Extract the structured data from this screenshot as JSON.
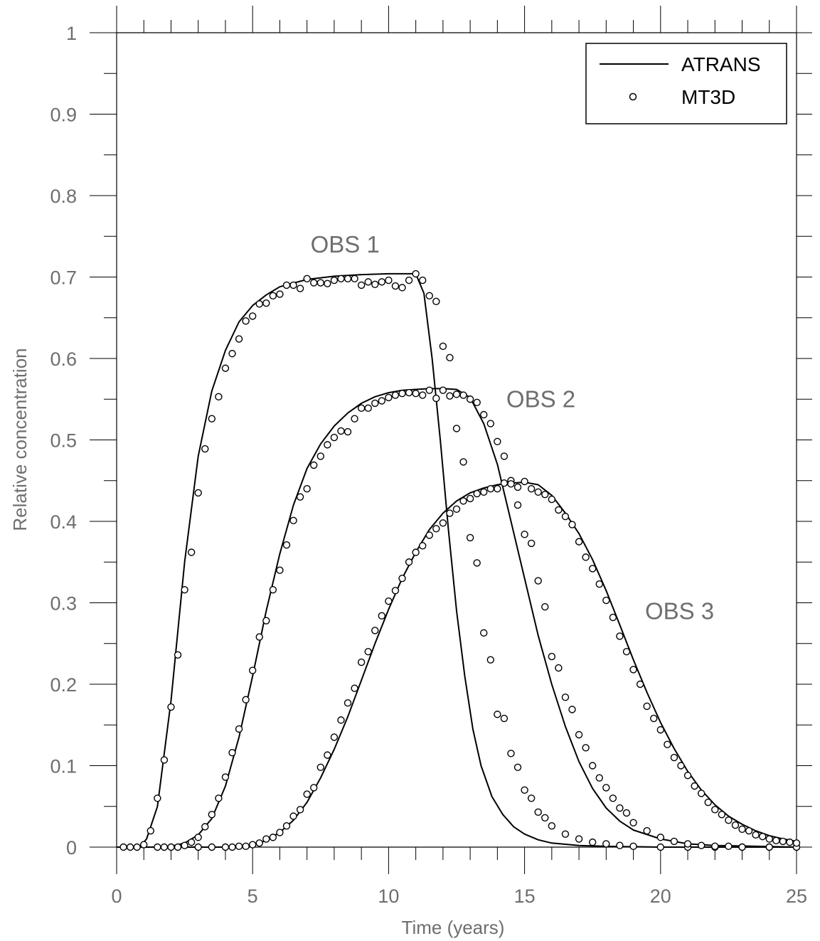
{
  "chart_data": {
    "type": "line",
    "title": "",
    "xlabel": "Time (years)",
    "ylabel": "Relative concentration",
    "xlim": [
      0,
      25
    ],
    "ylim": [
      0,
      1
    ],
    "x_ticks": [
      0,
      5,
      10,
      15,
      20,
      25
    ],
    "x_tick_labels": [
      "0",
      "5",
      "10",
      "15",
      "20",
      "25"
    ],
    "y_ticks": [
      0,
      0.1,
      0.2,
      0.3,
      0.4,
      0.5,
      0.6,
      0.7,
      0.8,
      0.9,
      1
    ],
    "y_tick_labels": [
      "0",
      "0.1",
      "0.2",
      "0.3",
      "0.4",
      "0.5",
      "0.6",
      "0.7",
      "0.8",
      "0.9",
      "1"
    ],
    "grid": false,
    "legend": {
      "position": "top-right",
      "entries": [
        {
          "label": "ATRANS",
          "style": "solid-line"
        },
        {
          "label": "MT3D",
          "style": "open-circle"
        }
      ]
    },
    "annotations": [
      {
        "text": "OBS 1",
        "x": 8.4,
        "y": 0.73
      },
      {
        "text": "OBS 2",
        "x": 15.6,
        "y": 0.54
      },
      {
        "text": "OBS 3",
        "x": 20.7,
        "y": 0.28
      }
    ],
    "series": [
      {
        "label": "OBS 1",
        "atrans": {
          "x": [
            0,
            0.5,
            0.9,
            1.1,
            1.5,
            2.0,
            2.5,
            3.0,
            3.5,
            4.0,
            4.5,
            5.0,
            5.5,
            6.0,
            7.0,
            8.0,
            9.0,
            10.0,
            10.5,
            11.0,
            11.3,
            11.6,
            11.9,
            12.2,
            12.5,
            12.8,
            13.1,
            13.4,
            13.8,
            14.2,
            14.6,
            15.0,
            15.5,
            16.0,
            17.0,
            18.0,
            20.0,
            25.0
          ],
          "y": [
            0,
            0,
            0.002,
            0.01,
            0.05,
            0.18,
            0.35,
            0.48,
            0.56,
            0.61,
            0.645,
            0.665,
            0.678,
            0.688,
            0.697,
            0.701,
            0.703,
            0.704,
            0.704,
            0.704,
            0.68,
            0.6,
            0.5,
            0.39,
            0.29,
            0.21,
            0.145,
            0.1,
            0.062,
            0.04,
            0.025,
            0.016,
            0.009,
            0.005,
            0.002,
            0.001,
            0,
            0
          ]
        },
        "mt3d": {
          "x": [
            0.25,
            0.5,
            0.75,
            1.0,
            1.25,
            1.5,
            1.75,
            2.0,
            2.25,
            2.5,
            2.75,
            3.0,
            3.25,
            3.5,
            3.75,
            4.0,
            4.25,
            4.5,
            4.75,
            5.0,
            5.25,
            5.5,
            5.75,
            6.0,
            6.25,
            6.5,
            6.75,
            7.0,
            7.25,
            7.5,
            7.75,
            8.0,
            8.25,
            8.5,
            8.75,
            9.0,
            9.25,
            9.5,
            9.75,
            10.0,
            10.25,
            10.5,
            10.75,
            11.0,
            11.25,
            11.5,
            11.75,
            12.0,
            12.25,
            12.5,
            12.75,
            13.0,
            13.25,
            13.5,
            13.75,
            14.0,
            14.25,
            14.5,
            14.75,
            15.0,
            15.25,
            15.5,
            15.75,
            16.0,
            16.5,
            17.0,
            17.5,
            18.0,
            18.5,
            19.0,
            20.0,
            21.0,
            22.0,
            23.0,
            24.0,
            25.0
          ],
          "y": [
            0,
            0,
            0,
            0.003,
            0.02,
            0.06,
            0.107,
            0.172,
            0.236,
            0.316,
            0.362,
            0.435,
            0.489,
            0.526,
            0.553,
            0.588,
            0.606,
            0.624,
            0.646,
            0.652,
            0.667,
            0.668,
            0.677,
            0.679,
            0.69,
            0.69,
            0.686,
            0.698,
            0.693,
            0.693,
            0.692,
            0.696,
            0.698,
            0.698,
            0.698,
            0.69,
            0.694,
            0.691,
            0.694,
            0.696,
            0.689,
            0.687,
            0.696,
            0.704,
            0.696,
            0.677,
            0.67,
            0.615,
            0.601,
            0.514,
            0.473,
            0.38,
            0.349,
            0.263,
            0.23,
            0.163,
            0.158,
            0.115,
            0.098,
            0.07,
            0.06,
            0.043,
            0.036,
            0.026,
            0.016,
            0.01,
            0.006,
            0.004,
            0.002,
            0.001,
            0,
            0,
            0,
            0,
            0,
            0
          ]
        }
      },
      {
        "label": "OBS 2",
        "atrans": {
          "x": [
            0,
            1.5,
            2.0,
            2.5,
            3.0,
            3.5,
            4.0,
            4.5,
            5.0,
            5.5,
            6.0,
            6.5,
            7.0,
            7.5,
            8.0,
            8.5,
            9.0,
            9.5,
            10.0,
            10.5,
            11.0,
            11.5,
            12.0,
            12.5,
            13.0,
            13.5,
            14.0,
            14.5,
            15.0,
            15.5,
            16.0,
            16.5,
            17.0,
            17.5,
            18.0,
            18.5,
            19.0,
            20.0,
            21.0,
            22.0,
            25.0
          ],
          "y": [
            0,
            0,
            0.001,
            0.005,
            0.015,
            0.035,
            0.075,
            0.135,
            0.21,
            0.29,
            0.36,
            0.42,
            0.465,
            0.495,
            0.517,
            0.533,
            0.545,
            0.553,
            0.558,
            0.561,
            0.562,
            0.563,
            0.563,
            0.562,
            0.552,
            0.52,
            0.47,
            0.4,
            0.33,
            0.26,
            0.2,
            0.148,
            0.105,
            0.072,
            0.048,
            0.032,
            0.021,
            0.01,
            0.004,
            0.002,
            0
          ]
        },
        "mt3d": {
          "x": [
            1.5,
            1.75,
            2.0,
            2.25,
            2.5,
            2.75,
            3.0,
            3.25,
            3.5,
            3.75,
            4.0,
            4.25,
            4.5,
            4.75,
            5.0,
            5.25,
            5.5,
            5.75,
            6.0,
            6.25,
            6.5,
            6.75,
            7.0,
            7.25,
            7.5,
            7.75,
            8.0,
            8.25,
            8.5,
            8.75,
            9.0,
            9.25,
            9.5,
            9.75,
            10.0,
            10.25,
            10.5,
            10.75,
            11.0,
            11.25,
            11.5,
            11.75,
            12.0,
            12.25,
            12.5,
            12.75,
            13.0,
            13.25,
            13.5,
            13.75,
            14.0,
            14.25,
            14.5,
            14.75,
            15.0,
            15.25,
            15.5,
            15.75,
            16.0,
            16.25,
            16.5,
            16.75,
            17.0,
            17.25,
            17.5,
            17.75,
            18.0,
            18.25,
            18.5,
            18.75,
            19.0,
            19.5,
            20.0,
            20.5,
            21.0,
            21.5,
            22.0,
            22.5,
            23.0,
            24.0,
            25.0
          ],
          "y": [
            0,
            0,
            0,
            0,
            0.002,
            0.006,
            0.012,
            0.025,
            0.04,
            0.06,
            0.086,
            0.116,
            0.145,
            0.181,
            0.217,
            0.258,
            0.278,
            0.316,
            0.34,
            0.371,
            0.401,
            0.43,
            0.44,
            0.469,
            0.48,
            0.494,
            0.503,
            0.511,
            0.51,
            0.526,
            0.539,
            0.539,
            0.545,
            0.548,
            0.552,
            0.555,
            0.557,
            0.558,
            0.557,
            0.555,
            0.561,
            0.551,
            0.561,
            0.554,
            0.556,
            0.555,
            0.55,
            0.546,
            0.531,
            0.52,
            0.498,
            0.48,
            0.45,
            0.42,
            0.384,
            0.373,
            0.327,
            0.295,
            0.234,
            0.22,
            0.184,
            0.169,
            0.138,
            0.122,
            0.1,
            0.085,
            0.073,
            0.06,
            0.048,
            0.042,
            0.03,
            0.02,
            0.012,
            0.007,
            0.004,
            0.002,
            0.001,
            0.001,
            0,
            0,
            0
          ]
        }
      },
      {
        "label": "OBS 3",
        "atrans": {
          "x": [
            0,
            4.0,
            4.5,
            5.0,
            5.5,
            6.0,
            6.5,
            7.0,
            7.5,
            8.0,
            8.5,
            9.0,
            9.5,
            10.0,
            10.5,
            11.0,
            11.5,
            12.0,
            12.5,
            13.0,
            13.5,
            14.0,
            14.5,
            15.0,
            15.5,
            16.0,
            16.5,
            17.0,
            17.5,
            18.0,
            18.5,
            19.0,
            19.5,
            20.0,
            20.5,
            21.0,
            21.5,
            22.0,
            22.5,
            23.0,
            23.5,
            24.0,
            24.5,
            25.0
          ],
          "y": [
            0,
            0,
            0.001,
            0.003,
            0.008,
            0.018,
            0.033,
            0.055,
            0.085,
            0.12,
            0.16,
            0.205,
            0.25,
            0.292,
            0.33,
            0.362,
            0.39,
            0.41,
            0.425,
            0.435,
            0.441,
            0.445,
            0.447,
            0.448,
            0.445,
            0.432,
            0.41,
            0.385,
            0.353,
            0.315,
            0.273,
            0.23,
            0.19,
            0.153,
            0.121,
            0.093,
            0.07,
            0.052,
            0.038,
            0.028,
            0.02,
            0.014,
            0.01,
            0.007
          ]
        },
        "mt3d": {
          "x": [
            3.0,
            3.5,
            4.0,
            4.25,
            4.5,
            4.75,
            5.0,
            5.25,
            5.5,
            5.75,
            6.0,
            6.25,
            6.5,
            6.75,
            7.0,
            7.25,
            7.5,
            7.75,
            8.0,
            8.25,
            8.5,
            8.75,
            9.0,
            9.25,
            9.5,
            9.75,
            10.0,
            10.25,
            10.5,
            10.75,
            11.0,
            11.25,
            11.5,
            11.75,
            12.0,
            12.25,
            12.5,
            12.75,
            13.0,
            13.25,
            13.5,
            13.75,
            14.0,
            14.25,
            14.5,
            14.75,
            15.0,
            15.25,
            15.5,
            15.75,
            16.0,
            16.25,
            16.5,
            16.75,
            17.0,
            17.25,
            17.5,
            17.75,
            18.0,
            18.25,
            18.5,
            18.75,
            19.0,
            19.25,
            19.5,
            19.75,
            20.0,
            20.25,
            20.5,
            20.75,
            21.0,
            21.25,
            21.5,
            21.75,
            22.0,
            22.25,
            22.5,
            22.75,
            23.0,
            23.25,
            23.5,
            23.75,
            24.0,
            24.25,
            24.5,
            24.75,
            25.0
          ],
          "y": [
            0,
            0,
            0,
            0,
            0.001,
            0.001,
            0.003,
            0.005,
            0.01,
            0.012,
            0.018,
            0.026,
            0.038,
            0.046,
            0.065,
            0.073,
            0.098,
            0.113,
            0.135,
            0.156,
            0.177,
            0.195,
            0.227,
            0.24,
            0.266,
            0.284,
            0.302,
            0.315,
            0.33,
            0.35,
            0.362,
            0.37,
            0.383,
            0.391,
            0.398,
            0.41,
            0.415,
            0.425,
            0.428,
            0.434,
            0.436,
            0.44,
            0.44,
            0.447,
            0.446,
            0.442,
            0.449,
            0.44,
            0.436,
            0.433,
            0.427,
            0.414,
            0.406,
            0.396,
            0.375,
            0.356,
            0.342,
            0.323,
            0.303,
            0.282,
            0.259,
            0.24,
            0.218,
            0.2,
            0.173,
            0.158,
            0.144,
            0.126,
            0.11,
            0.1,
            0.088,
            0.075,
            0.066,
            0.055,
            0.046,
            0.04,
            0.033,
            0.027,
            0.022,
            0.02,
            0.015,
            0.013,
            0.01,
            0.008,
            0.007,
            0.006,
            0.005
          ]
        }
      }
    ]
  }
}
